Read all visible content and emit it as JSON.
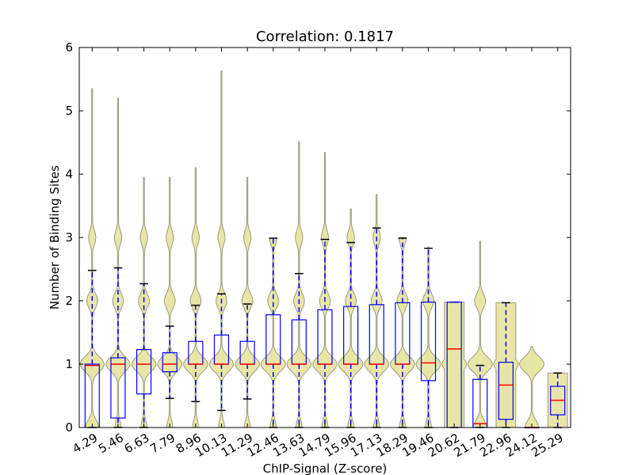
{
  "chart_data": {
    "type": "violin",
    "title": "Correlation: 0.1817",
    "xlabel": "ChIP-Signal (Z-score)",
    "ylabel": "Number of Binding Sites",
    "ylim": [
      0,
      6
    ],
    "yticks": [
      "0",
      "1",
      "2",
      "3",
      "4",
      "5",
      "6"
    ],
    "grid": false,
    "colors": {
      "violin_fill": "#e8e6a6",
      "violin_edge": "#9a9a80",
      "box": "#0000ff",
      "median": "#ff0000",
      "whisker_cap": "#000000"
    },
    "categories": [
      "4.29",
      "5.46",
      "6.63",
      "7.79",
      "8.96",
      "10.13",
      "11.29",
      "12.46",
      "13.63",
      "14.79",
      "15.96",
      "17.13",
      "18.29",
      "19.46",
      "20.62",
      "21.79",
      "22.96",
      "24.12",
      "25.29"
    ],
    "series": [
      {
        "category": "4.29",
        "violin_max": 5.35,
        "box": {
          "q1": 0.0,
          "median": 0.98,
          "q3": 1.0,
          "whisker_low": 0.0,
          "whisker_high": 2.48
        }
      },
      {
        "category": "5.46",
        "violin_max": 5.2,
        "box": {
          "q1": 0.15,
          "median": 1.0,
          "q3": 1.1,
          "whisker_low": 0.0,
          "whisker_high": 2.52
        }
      },
      {
        "category": "6.63",
        "violin_max": 3.95,
        "box": {
          "q1": 0.53,
          "median": 1.0,
          "q3": 1.23,
          "whisker_low": 0.0,
          "whisker_high": 2.27
        }
      },
      {
        "category": "7.79",
        "violin_max": 3.95,
        "box": {
          "q1": 0.88,
          "median": 1.0,
          "q3": 1.18,
          "whisker_low": 0.46,
          "whisker_high": 1.6
        }
      },
      {
        "category": "8.96",
        "violin_max": 4.1,
        "box": {
          "q1": 1.0,
          "median": 1.0,
          "q3": 1.36,
          "whisker_low": 0.41,
          "whisker_high": 1.93
        }
      },
      {
        "category": "10.13",
        "violin_max": 5.63,
        "box": {
          "q1": 1.0,
          "median": 1.0,
          "q3": 1.46,
          "whisker_low": 0.27,
          "whisker_high": 2.11
        }
      },
      {
        "category": "11.29",
        "violin_max": 3.95,
        "box": {
          "q1": 1.0,
          "median": 1.0,
          "q3": 1.36,
          "whisker_low": 0.45,
          "whisker_high": 1.95
        }
      },
      {
        "category": "12.46",
        "violin_max": 2.99,
        "box": {
          "q1": 1.0,
          "median": 1.0,
          "q3": 1.78,
          "whisker_low": 0.0,
          "whisker_high": 2.99
        }
      },
      {
        "category": "13.63",
        "violin_max": 4.51,
        "box": {
          "q1": 1.0,
          "median": 1.0,
          "q3": 1.7,
          "whisker_low": 0.0,
          "whisker_high": 2.43
        }
      },
      {
        "category": "14.79",
        "violin_max": 4.34,
        "box": {
          "q1": 1.0,
          "median": 1.0,
          "q3": 1.86,
          "whisker_low": 0.0,
          "whisker_high": 2.97
        }
      },
      {
        "category": "15.96",
        "violin_max": 3.45,
        "box": {
          "q1": 1.0,
          "median": 1.0,
          "q3": 1.91,
          "whisker_low": 0.0,
          "whisker_high": 2.92
        }
      },
      {
        "category": "17.13",
        "violin_max": 3.68,
        "box": {
          "q1": 1.0,
          "median": 1.0,
          "q3": 1.94,
          "whisker_low": 0.0,
          "whisker_high": 3.15
        }
      },
      {
        "category": "18.29",
        "violin_max": 3.0,
        "box": {
          "q1": 1.0,
          "median": 1.0,
          "q3": 1.97,
          "whisker_low": 0.0,
          "whisker_high": 2.99
        }
      },
      {
        "category": "19.46",
        "violin_max": 2.85,
        "box": {
          "q1": 0.74,
          "median": 1.02,
          "q3": 1.98,
          "whisker_low": 0.0,
          "whisker_high": 2.83
        }
      },
      {
        "category": "20.62",
        "violin_max": 1.98,
        "box": {
          "q1": 0.0,
          "median": 1.24,
          "q3": 1.98,
          "whisker_low": 0.0,
          "whisker_high": 1.98
        }
      },
      {
        "category": "21.79",
        "violin_max": 2.94,
        "box": {
          "q1": 0.0,
          "median": 0.06,
          "q3": 0.76,
          "whisker_low": 0.0,
          "whisker_high": 0.98
        }
      },
      {
        "category": "22.96",
        "violin_max": 1.97,
        "box": {
          "q1": 0.13,
          "median": 0.67,
          "q3": 1.03,
          "whisker_low": 0.0,
          "whisker_high": 1.97
        }
      },
      {
        "category": "24.12",
        "violin_max": 1.28,
        "box": {
          "q1": 0.0,
          "median": 0.0,
          "q3": 0.0,
          "whisker_low": 0.0,
          "whisker_high": 0.0
        }
      },
      {
        "category": "25.29",
        "violin_max": 0.86,
        "box": {
          "q1": 0.2,
          "median": 0.43,
          "q3": 0.65,
          "whisker_low": 0.0,
          "whisker_high": 0.86
        }
      }
    ]
  }
}
